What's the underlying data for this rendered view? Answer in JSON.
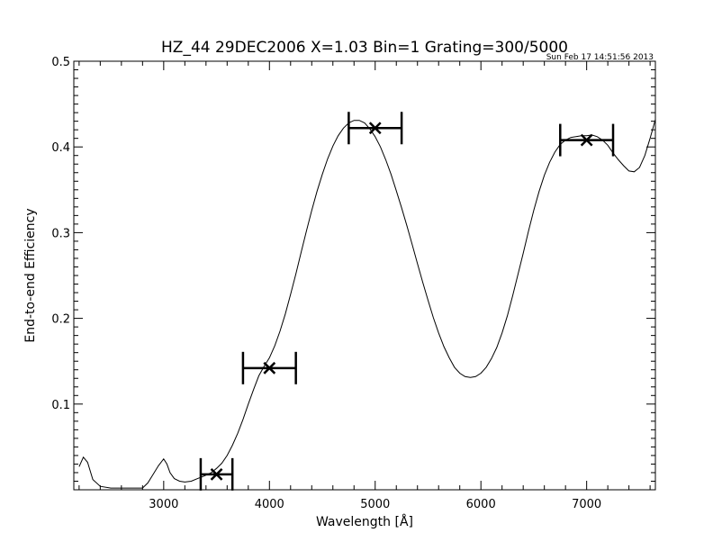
{
  "chart_data": {
    "type": "line",
    "title": "HZ_44 29DEC2006 X=1.03 Bin=1 Grating=300/5000",
    "timestamp": "Sun Feb 17 14:51:56 2013",
    "xlabel": "Wavelength [Å]",
    "ylabel": "End-to-end Efficiency",
    "xlim": [
      2150,
      7650
    ],
    "ylim": [
      0.0,
      0.5
    ],
    "x_ticks": [
      3000,
      4000,
      5000,
      6000,
      7000
    ],
    "y_ticks": [
      0.1,
      0.2,
      0.3,
      0.4,
      0.5
    ],
    "x_tick_labels": [
      "3000",
      "4000",
      "5000",
      "6000",
      "7000"
    ],
    "y_tick_labels": [
      "0.1",
      "0.2",
      "0.3",
      "0.4",
      "0.5"
    ],
    "grid": false,
    "series": [
      {
        "style": "line",
        "x": [
          2200,
          2240,
          2280,
          2330,
          2400,
          2500,
          2600,
          2700,
          2800,
          2850,
          2900,
          2950,
          3000,
          3030,
          3060,
          3100,
          3150,
          3200,
          3260,
          3320,
          3380,
          3450,
          3500,
          3550,
          3600,
          3650,
          3700,
          3750,
          3800,
          3850,
          3900,
          3950,
          4000,
          4050,
          4100,
          4150,
          4200,
          4250,
          4300,
          4350,
          4400,
          4450,
          4500,
          4550,
          4600,
          4650,
          4700,
          4750,
          4800,
          4850,
          4900,
          4950,
          5000,
          5050,
          5100,
          5150,
          5200,
          5250,
          5300,
          5350,
          5400,
          5450,
          5500,
          5550,
          5600,
          5650,
          5700,
          5750,
          5800,
          5850,
          5900,
          5950,
          6000,
          6050,
          6100,
          6150,
          6200,
          6250,
          6300,
          6350,
          6400,
          6450,
          6500,
          6550,
          6600,
          6650,
          6700,
          6750,
          6800,
          6850,
          6900,
          6950,
          7000,
          7050,
          7100,
          7150,
          7200,
          7250,
          7300,
          7350,
          7400,
          7450,
          7500,
          7550,
          7600,
          7650
        ],
        "y": [
          0.027,
          0.038,
          0.032,
          0.012,
          0.004,
          0.002,
          0.002,
          0.002,
          0.002,
          0.008,
          0.018,
          0.028,
          0.036,
          0.03,
          0.02,
          0.013,
          0.01,
          0.009,
          0.01,
          0.013,
          0.016,
          0.02,
          0.025,
          0.031,
          0.04,
          0.052,
          0.066,
          0.082,
          0.1,
          0.117,
          0.133,
          0.144,
          0.154,
          0.168,
          0.185,
          0.205,
          0.228,
          0.252,
          0.277,
          0.302,
          0.326,
          0.348,
          0.368,
          0.386,
          0.401,
          0.413,
          0.422,
          0.428,
          0.431,
          0.431,
          0.428,
          0.421,
          0.412,
          0.4,
          0.385,
          0.368,
          0.349,
          0.329,
          0.308,
          0.286,
          0.264,
          0.242,
          0.221,
          0.201,
          0.183,
          0.167,
          0.154,
          0.143,
          0.136,
          0.132,
          0.131,
          0.132,
          0.136,
          0.143,
          0.153,
          0.166,
          0.183,
          0.203,
          0.226,
          0.251,
          0.276,
          0.302,
          0.326,
          0.348,
          0.367,
          0.382,
          0.394,
          0.403,
          0.408,
          0.411,
          0.412,
          0.413,
          0.413,
          0.414,
          0.412,
          0.408,
          0.402,
          0.393,
          0.385,
          0.378,
          0.372,
          0.371,
          0.376,
          0.39,
          0.41,
          0.432
        ]
      },
      {
        "style": "points-with-xerr",
        "x": [
          3500,
          4000,
          5000,
          7000
        ],
        "y": [
          0.018,
          0.142,
          0.422,
          0.408
        ],
        "xerr": [
          150,
          250,
          250,
          250
        ]
      }
    ]
  }
}
